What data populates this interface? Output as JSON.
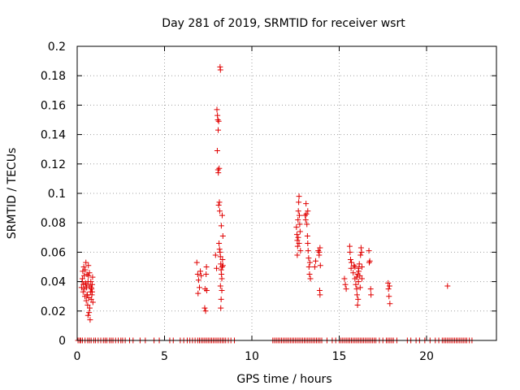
{
  "chart_data": {
    "type": "scatter",
    "title": "Day 281 of 2019, SRMTID for receiver wsrt",
    "xlabel": "GPS time / hours",
    "ylabel": "SRMTID / TECUs",
    "xlim": [
      0,
      24
    ],
    "ylim": [
      0,
      0.2
    ],
    "grid": true,
    "marker": "+",
    "marker_color": "#e00000",
    "x_ticks": [
      0,
      5,
      10,
      15,
      20
    ],
    "x_tick_labels": [
      "0",
      "5",
      "10",
      "15",
      "20"
    ],
    "y_ticks": [
      0,
      0.02,
      0.04,
      0.06,
      0.08,
      0.1,
      0.12,
      0.14,
      0.16,
      0.18,
      0.2
    ],
    "y_tick_labels": [
      "0",
      "0.02",
      "0.04",
      "0.06",
      "0.08",
      "0.1",
      "0.12",
      "0.14",
      "0.16",
      "0.18",
      "0.2"
    ],
    "series": [
      {
        "name": "SRMTID",
        "points": [
          [
            0.25,
            0.036
          ],
          [
            0.28,
            0.04
          ],
          [
            0.3,
            0.042
          ],
          [
            0.32,
            0.047
          ],
          [
            0.34,
            0.033
          ],
          [
            0.36,
            0.038
          ],
          [
            0.38,
            0.05
          ],
          [
            0.4,
            0.044
          ],
          [
            0.42,
            0.035
          ],
          [
            0.44,
            0.03
          ],
          [
            0.46,
            0.048
          ],
          [
            0.48,
            0.039
          ],
          [
            0.5,
            0.053
          ],
          [
            0.52,
            0.027
          ],
          [
            0.54,
            0.036
          ],
          [
            0.56,
            0.045
          ],
          [
            0.58,
            0.031
          ],
          [
            0.6,
            0.024
          ],
          [
            0.62,
            0.04
          ],
          [
            0.64,
            0.051
          ],
          [
            0.66,
            0.029
          ],
          [
            0.68,
            0.019
          ],
          [
            0.7,
            0.037
          ],
          [
            0.72,
            0.022
          ],
          [
            0.74,
            0.014
          ],
          [
            0.76,
            0.033
          ],
          [
            0.78,
            0.04
          ],
          [
            0.8,
            0.028
          ],
          [
            0.82,
            0.035
          ],
          [
            0.84,
            0.031
          ],
          [
            0.86,
            0.038
          ],
          [
            0.88,
            0.043
          ],
          [
            0.9,
            0.026
          ],
          [
            0.64,
            0.044
          ],
          [
            0.7,
            0.046
          ],
          [
            0.5,
            0.038
          ],
          [
            0.56,
            0.031
          ],
          [
            0.62,
            0.017
          ],
          [
            0.8,
            0.036
          ],
          [
            0.86,
            0.033
          ],
          [
            6.85,
            0.053
          ],
          [
            6.9,
            0.045
          ],
          [
            6.95,
            0.041
          ],
          [
            7.0,
            0.036
          ],
          [
            7.05,
            0.047
          ],
          [
            6.92,
            0.032
          ],
          [
            7.1,
            0.044
          ],
          [
            7.3,
            0.022
          ],
          [
            7.32,
            0.035
          ],
          [
            7.35,
            0.02
          ],
          [
            7.38,
            0.045
          ],
          [
            7.4,
            0.05
          ],
          [
            7.42,
            0.034
          ],
          [
            7.92,
            0.058
          ],
          [
            7.98,
            0.049
          ],
          [
            8.0,
            0.157
          ],
          [
            8.03,
            0.153
          ],
          [
            8.05,
            0.15
          ],
          [
            8.07,
            0.143
          ],
          [
            8.02,
            0.129
          ],
          [
            8.1,
            0.149
          ],
          [
            8.06,
            0.116
          ],
          [
            8.13,
            0.117
          ],
          [
            8.08,
            0.114
          ],
          [
            8.14,
            0.094
          ],
          [
            8.16,
            0.088
          ],
          [
            8.1,
            0.092
          ],
          [
            8.18,
            0.186
          ],
          [
            8.2,
            0.184
          ],
          [
            8.12,
            0.066
          ],
          [
            8.15,
            0.062
          ],
          [
            8.18,
            0.06
          ],
          [
            8.2,
            0.057
          ],
          [
            8.22,
            0.052
          ],
          [
            8.24,
            0.048
          ],
          [
            8.26,
            0.045
          ],
          [
            8.28,
            0.042
          ],
          [
            8.3,
            0.05
          ],
          [
            8.32,
            0.055
          ],
          [
            8.34,
            0.051
          ],
          [
            8.25,
            0.078
          ],
          [
            8.3,
            0.085
          ],
          [
            8.2,
            0.037
          ],
          [
            8.24,
            0.028
          ],
          [
            8.22,
            0.022
          ],
          [
            8.34,
            0.071
          ],
          [
            8.28,
            0.034
          ],
          [
            12.55,
            0.077
          ],
          [
            12.58,
            0.072
          ],
          [
            12.6,
            0.068
          ],
          [
            12.62,
            0.064
          ],
          [
            12.64,
            0.082
          ],
          [
            12.66,
            0.088
          ],
          [
            12.68,
            0.094
          ],
          [
            12.7,
            0.098
          ],
          [
            12.72,
            0.085
          ],
          [
            12.74,
            0.079
          ],
          [
            12.76,
            0.074
          ],
          [
            12.78,
            0.061
          ],
          [
            12.6,
            0.058
          ],
          [
            12.65,
            0.07
          ],
          [
            12.7,
            0.066
          ],
          [
            13.05,
            0.085
          ],
          [
            13.08,
            0.082
          ],
          [
            13.1,
            0.093
          ],
          [
            13.12,
            0.086
          ],
          [
            13.15,
            0.079
          ],
          [
            13.18,
            0.071
          ],
          [
            13.2,
            0.066
          ],
          [
            13.22,
            0.061
          ],
          [
            13.25,
            0.056
          ],
          [
            13.27,
            0.05
          ],
          [
            13.3,
            0.045
          ],
          [
            13.32,
            0.053
          ],
          [
            13.35,
            0.042
          ],
          [
            13.2,
            0.088
          ],
          [
            13.6,
            0.05
          ],
          [
            13.65,
            0.054
          ],
          [
            13.8,
            0.061
          ],
          [
            13.85,
            0.058
          ],
          [
            13.9,
            0.063
          ],
          [
            13.88,
            0.034
          ],
          [
            13.9,
            0.031
          ],
          [
            13.92,
            0.051
          ],
          [
            13.86,
            0.06
          ],
          [
            15.3,
            0.042
          ],
          [
            15.35,
            0.038
          ],
          [
            15.4,
            0.035
          ],
          [
            15.6,
            0.064
          ],
          [
            15.62,
            0.06
          ],
          [
            15.65,
            0.055
          ],
          [
            15.68,
            0.049
          ],
          [
            15.7,
            0.053
          ],
          [
            15.8,
            0.046
          ],
          [
            15.85,
            0.051
          ],
          [
            15.9,
            0.042
          ],
          [
            15.95,
            0.038
          ],
          [
            16.0,
            0.035
          ],
          [
            16.02,
            0.031
          ],
          [
            16.05,
            0.024
          ],
          [
            16.08,
            0.028
          ],
          [
            16.1,
            0.04
          ],
          [
            16.12,
            0.047
          ],
          [
            16.15,
            0.052
          ],
          [
            16.18,
            0.044
          ],
          [
            16.2,
            0.036
          ],
          [
            16.22,
            0.058
          ],
          [
            16.25,
            0.063
          ],
          [
            16.28,
            0.06
          ],
          [
            16.3,
            0.042
          ],
          [
            16.1,
            0.049
          ],
          [
            16.05,
            0.045
          ],
          [
            16.0,
            0.043
          ],
          [
            15.9,
            0.05
          ],
          [
            16.3,
            0.05
          ],
          [
            16.7,
            0.061
          ],
          [
            16.72,
            0.053
          ],
          [
            16.75,
            0.054
          ],
          [
            16.8,
            0.035
          ],
          [
            16.82,
            0.031
          ],
          [
            17.8,
            0.039
          ],
          [
            17.82,
            0.035
          ],
          [
            17.85,
            0.03
          ],
          [
            17.9,
            0.025
          ],
          [
            17.88,
            0.037
          ],
          [
            21.2,
            0.037
          ]
        ],
        "zero_points_x": [
          0.05,
          0.15,
          0.2,
          0.3,
          0.45,
          0.6,
          0.7,
          0.8,
          0.95,
          1.05,
          1.2,
          1.35,
          1.5,
          1.6,
          1.7,
          1.85,
          1.95,
          2.05,
          2.2,
          2.35,
          2.5,
          2.6,
          2.75,
          3.0,
          3.2,
          3.6,
          3.9,
          4.4,
          4.7,
          5.3,
          5.5,
          5.9,
          6.1,
          6.3,
          6.45,
          6.6,
          6.75,
          6.9,
          7.0,
          7.1,
          7.2,
          7.3,
          7.4,
          7.5,
          7.6,
          7.7,
          7.8,
          7.9,
          8.0,
          8.1,
          8.2,
          8.3,
          8.4,
          8.5,
          8.65,
          8.8,
          9.0,
          11.2,
          11.3,
          11.4,
          11.5,
          11.6,
          11.7,
          11.8,
          11.9,
          12.0,
          12.1,
          12.2,
          12.3,
          12.4,
          12.5,
          12.6,
          12.7,
          12.8,
          12.9,
          13.0,
          13.1,
          13.2,
          13.3,
          13.4,
          13.5,
          13.6,
          13.7,
          13.8,
          13.9,
          14.0,
          14.3,
          14.6,
          14.8,
          15.0,
          15.1,
          15.2,
          15.3,
          15.4,
          15.5,
          15.6,
          15.7,
          15.8,
          15.9,
          16.0,
          16.1,
          16.2,
          16.3,
          16.4,
          16.5,
          16.6,
          16.7,
          16.8,
          16.9,
          17.0,
          17.1,
          17.3,
          17.5,
          17.7,
          17.8,
          17.9,
          18.0,
          18.1,
          18.3,
          18.9,
          19.1,
          19.4,
          19.6,
          19.9,
          20.2,
          20.5,
          20.7,
          20.9,
          21.0,
          21.1,
          21.2,
          21.3,
          21.4,
          21.5,
          21.6,
          21.7,
          21.8,
          21.9,
          22.0,
          22.1,
          22.2,
          22.3,
          22.45,
          22.6
        ]
      }
    ]
  }
}
